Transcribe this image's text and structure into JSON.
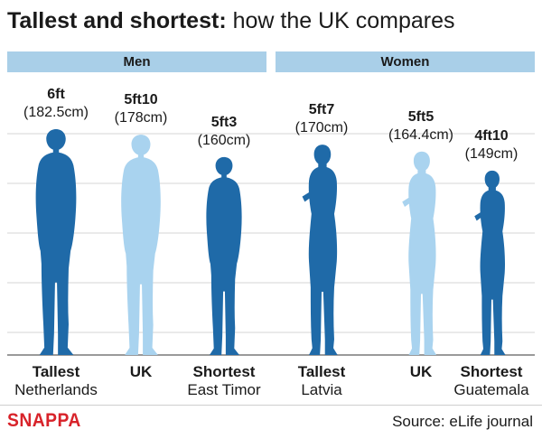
{
  "title": {
    "lead": "Tallest and shortest:",
    "rest": "how the UK compares"
  },
  "groups": [
    {
      "label": "Men"
    },
    {
      "label": "Women"
    }
  ],
  "brand": "SNAPPA",
  "source": "Source: eLife journal",
  "colors": {
    "dark": "#1f6aa8",
    "light": "#a9d3ef",
    "header": "#a9cfe8",
    "grid": "#d6d6d6",
    "baseline": "#9a9a9a",
    "brand": "#d8232a"
  },
  "chart_data": {
    "type": "bar",
    "ylim": [
      0,
      182.5
    ],
    "grid": true,
    "categories": [
      "Netherlands",
      "UK",
      "East Timor",
      "Latvia",
      "UK",
      "Guatemala"
    ],
    "items": [
      {
        "group": "Men",
        "rank": "Tallest",
        "country": "Netherlands",
        "height_ft": "6ft",
        "height_cm_label": "(182.5cm)",
        "value": 182.5,
        "shade": "dark",
        "figure": "man"
      },
      {
        "group": "Men",
        "rank": "UK",
        "country": "",
        "height_ft": "5ft10",
        "height_cm_label": "(178cm)",
        "value": 178,
        "shade": "light",
        "figure": "man"
      },
      {
        "group": "Men",
        "rank": "Shortest",
        "country": "East Timor",
        "height_ft": "5ft3",
        "height_cm_label": "(160cm)",
        "value": 160,
        "shade": "dark",
        "figure": "man"
      },
      {
        "group": "Women",
        "rank": "Tallest",
        "country": "Latvia",
        "height_ft": "5ft7",
        "height_cm_label": "(170cm)",
        "value": 170,
        "shade": "dark",
        "figure": "woman"
      },
      {
        "group": "Women",
        "rank": "UK",
        "country": "",
        "height_ft": "5ft5",
        "height_cm_label": "(164.4cm)",
        "value": 164.4,
        "shade": "light",
        "figure": "woman"
      },
      {
        "group": "Women",
        "rank": "Shortest",
        "country": "Guatemala",
        "height_ft": "4ft10",
        "height_cm_label": "(149cm)",
        "value": 149,
        "shade": "dark",
        "figure": "woman"
      }
    ]
  }
}
